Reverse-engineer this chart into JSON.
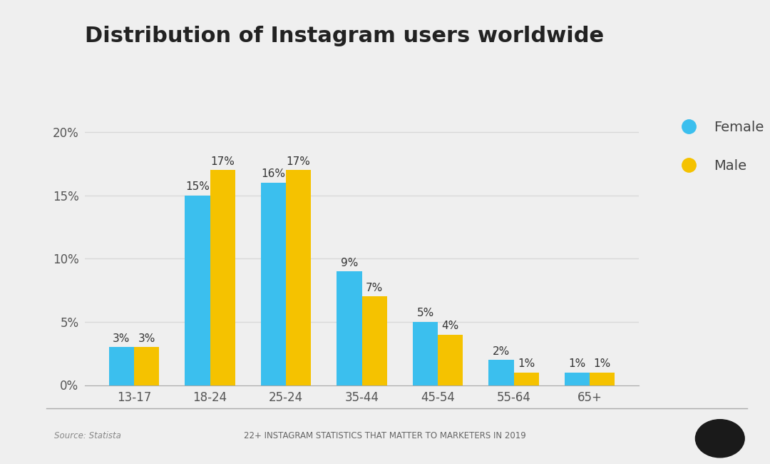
{
  "title": "Distribution of Instagram users worldwide",
  "categories": [
    "13-17",
    "18-24",
    "25-24",
    "35-44",
    "45-54",
    "55-64",
    "65+"
  ],
  "female_values": [
    3,
    15,
    16,
    9,
    5,
    2,
    1
  ],
  "male_values": [
    3,
    17,
    17,
    7,
    4,
    1,
    1
  ],
  "female_color": "#3BBFEE",
  "male_color": "#F5C200",
  "background_color": "#EFEFEF",
  "title_fontsize": 22,
  "tick_fontsize": 12,
  "legend_fontsize": 14,
  "bar_label_fontsize": 11,
  "yticks": [
    0,
    5,
    10,
    15,
    20
  ],
  "ylim": [
    0,
    22
  ],
  "footer_text": "22+ INSTAGRAM STATISTICS THAT MATTER TO MARKETERS IN 2019",
  "source_text": "Source: Statista"
}
